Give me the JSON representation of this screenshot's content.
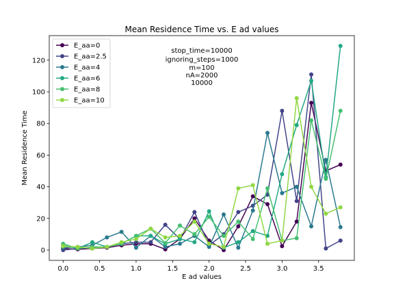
{
  "chart_data": {
    "type": "line",
    "title": "Mean Residence Time vs. E ad values",
    "xlabel": "E ad values",
    "ylabel": "Mean Residence Time",
    "xlim": [
      -0.19,
      3.99
    ],
    "ylim": [
      -6.5,
      135.5
    ],
    "xticks": [
      0.0,
      0.5,
      1.0,
      1.5,
      2.0,
      2.5,
      3.0,
      3.5
    ],
    "xtick_labels": [
      "0.0",
      "0.5",
      "1.0",
      "1.5",
      "2.0",
      "2.5",
      "3.0",
      "3.5"
    ],
    "yticks": [
      0,
      20,
      40,
      60,
      80,
      100,
      120
    ],
    "ytick_labels": [
      "0",
      "20",
      "40",
      "60",
      "80",
      "100",
      "120"
    ],
    "grid": false,
    "legend_position": "upper-left",
    "x": [
      0.0,
      0.2,
      0.4,
      0.6,
      0.8,
      1.0,
      1.2,
      1.4,
      1.6,
      1.8,
      2.0,
      2.2,
      2.4,
      2.6,
      2.8,
      3.0,
      3.2,
      3.4,
      3.6,
      3.8
    ],
    "annotation": [
      "stop_time=10000",
      "ignoring_steps=1000",
      "m=100",
      "nA=2000",
      "10000"
    ],
    "series": [
      {
        "name": "E_aa=0",
        "color": "#440154",
        "values": [
          1,
          0.5,
          1,
          1.5,
          3,
          4,
          4,
          0.5,
          7,
          20,
          6,
          0,
          15,
          34,
          29,
          2.5,
          18,
          93,
          50,
          54
        ]
      },
      {
        "name": "E_aa=2.5",
        "color": "#414487",
        "values": [
          0,
          1,
          1.5,
          2,
          4,
          5,
          5,
          16,
          7,
          24,
          3,
          10,
          24,
          28,
          35,
          88,
          31,
          111,
          1,
          6
        ]
      },
      {
        "name": "E_aa=4",
        "color": "#2a788e",
        "values": [
          1.5,
          2,
          3,
          8,
          11.5,
          1.5,
          9,
          2,
          4,
          9,
          2,
          22.5,
          1.5,
          25,
          74,
          36,
          40,
          15,
          57,
          14.5
        ]
      },
      {
        "name": "E_aa=6",
        "color": "#22a884",
        "values": [
          3,
          1,
          5,
          2,
          4,
          9,
          9,
          4,
          7,
          5,
          24.5,
          1.5,
          5,
          12,
          9,
          48,
          79,
          107,
          46,
          129
        ]
      },
      {
        "name": "E_aa=8",
        "color": "#44bf70",
        "values": [
          4,
          1,
          2,
          2,
          4,
          9,
          13.5,
          4.5,
          15.5,
          10,
          21,
          9,
          18,
          7,
          39,
          6,
          7.5,
          82,
          45,
          88
        ]
      },
      {
        "name": "E_aa=10",
        "color": "#90d743",
        "values": [
          2.5,
          2,
          1,
          2,
          5,
          7,
          13.5,
          8,
          9,
          18,
          4,
          2,
          39,
          41,
          4,
          6,
          96,
          40,
          23,
          27
        ]
      }
    ]
  }
}
